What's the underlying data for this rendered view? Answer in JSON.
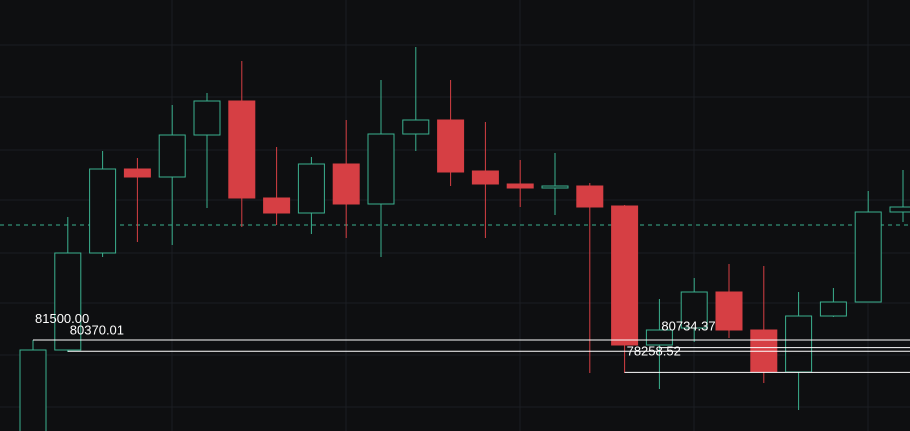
{
  "chart_data": {
    "type": "candlestick",
    "ylim": [
      72400,
      115500
    ],
    "up_color": "#3bb08f",
    "down_color": "#d63f44",
    "grid": true,
    "last_price": 93000,
    "series": {
      "open": [
        71000,
        80500,
        90200,
        98600,
        97800,
        102000,
        105400,
        95700,
        94200,
        99100,
        95100,
        102100,
        103500,
        98400,
        97100,
        96700,
        96900,
        94900,
        81000,
        82700,
        86300,
        82500,
        78300,
        83900,
        85300,
        94300
      ],
      "high": [
        81500,
        93800,
        100400,
        99700,
        105000,
        106200,
        109400,
        100800,
        99800,
        103500,
        107500,
        110800,
        107500,
        103300,
        99500,
        100200,
        97200,
        95000,
        85600,
        87700,
        89100,
        88900,
        86300,
        86700,
        96400,
        98500
      ],
      "low": [
        70500,
        80300,
        89800,
        91300,
        91000,
        94700,
        92800,
        93000,
        92100,
        91700,
        89800,
        100400,
        96900,
        91700,
        94800,
        94000,
        78200,
        78200,
        76600,
        81300,
        81700,
        77200,
        74500,
        83800,
        85300,
        93300
      ],
      "close": [
        80500,
        90200,
        98600,
        97800,
        102000,
        105400,
        95700,
        94200,
        99100,
        95100,
        102100,
        103500,
        98300,
        97100,
        96700,
        96900,
        94800,
        81000,
        82500,
        86300,
        82500,
        78300,
        83900,
        85300,
        94300,
        94800
      ]
    },
    "levels": [
      {
        "value": 81500,
        "label": "81500.00",
        "from": 0
      },
      {
        "value": 80370.01,
        "label": "80370.01",
        "from": 1
      },
      {
        "value": 80734.37,
        "label": "80734.37",
        "from": 18
      },
      {
        "value": 78258.52,
        "label": "78258.52",
        "from": 17
      }
    ]
  }
}
